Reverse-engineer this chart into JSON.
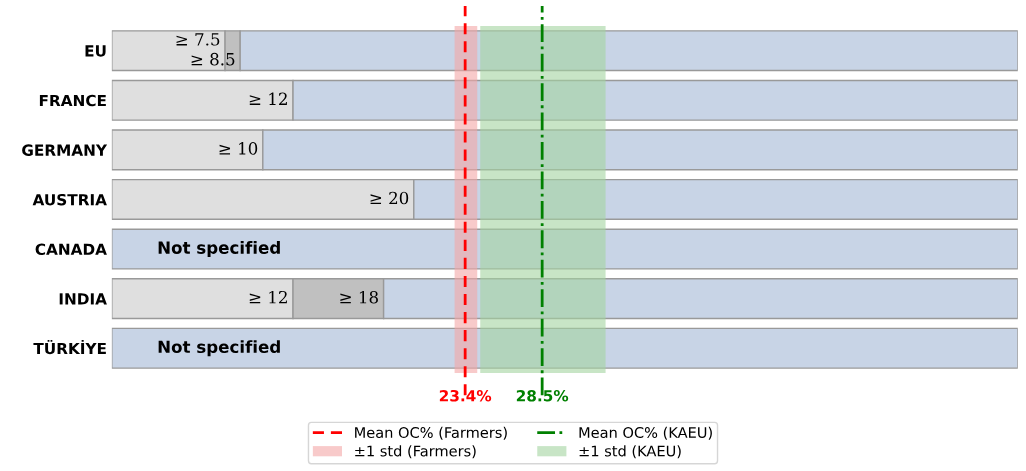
{
  "chart_data": {
    "type": "bar",
    "orientation": "horizontal",
    "stacked": true,
    "categories": [
      "EU",
      "FRANCE",
      "GERMANY",
      "AUSTRIA",
      "CANADA",
      "INDIA",
      "TÜRKİYE"
    ],
    "series": [
      {
        "color": "#dfdfdf",
        "values": [
          7.5,
          12,
          10,
          20,
          null,
          12,
          null
        ],
        "value_labels": [
          "≥ 7.5",
          "≥ 12",
          "≥ 10",
          "≥ 20",
          null,
          "≥ 12",
          null
        ]
      },
      {
        "color": "#c0c0c0",
        "values": [
          1,
          null,
          null,
          null,
          null,
          6,
          null
        ],
        "value_labels": [
          "≥ 8.5",
          null,
          null,
          null,
          null,
          "≥ 18",
          null
        ]
      },
      {
        "color": "#c8d4e6",
        "values": [
          51.5,
          48,
          50,
          40,
          60,
          42,
          60
        ],
        "value_labels": [
          null,
          null,
          null,
          null,
          "Not specified",
          null,
          "Not specified"
        ]
      }
    ],
    "xlim": [
      0,
      60
    ],
    "ref_lines": [
      {
        "axis": "x",
        "value": 23.4,
        "label": "Mean OC% (Farmers)",
        "color": "#ff0000",
        "line_style": "dashed"
      },
      {
        "axis": "x",
        "value": 28.5,
        "label": "Mean OC% (KAEU)",
        "color": "#008000",
        "line_style": "dashdot"
      }
    ],
    "bands": [
      {
        "axis": "x",
        "from": 22.7,
        "to": 24.2,
        "label": "±1 std (Farmers)",
        "color": "#f4a6a6"
      },
      {
        "axis": "x",
        "from": 24.4,
        "to": 32.7,
        "label": "±1 std (KAEU)",
        "color": "#a3d3a0"
      }
    ],
    "annotations": [
      {
        "text": "23.4%",
        "x": 23.4
      },
      {
        "text": "28.5%",
        "x": 28.5
      }
    ],
    "tick_labels": "y",
    "grid": false,
    "legend": "bottom"
  }
}
